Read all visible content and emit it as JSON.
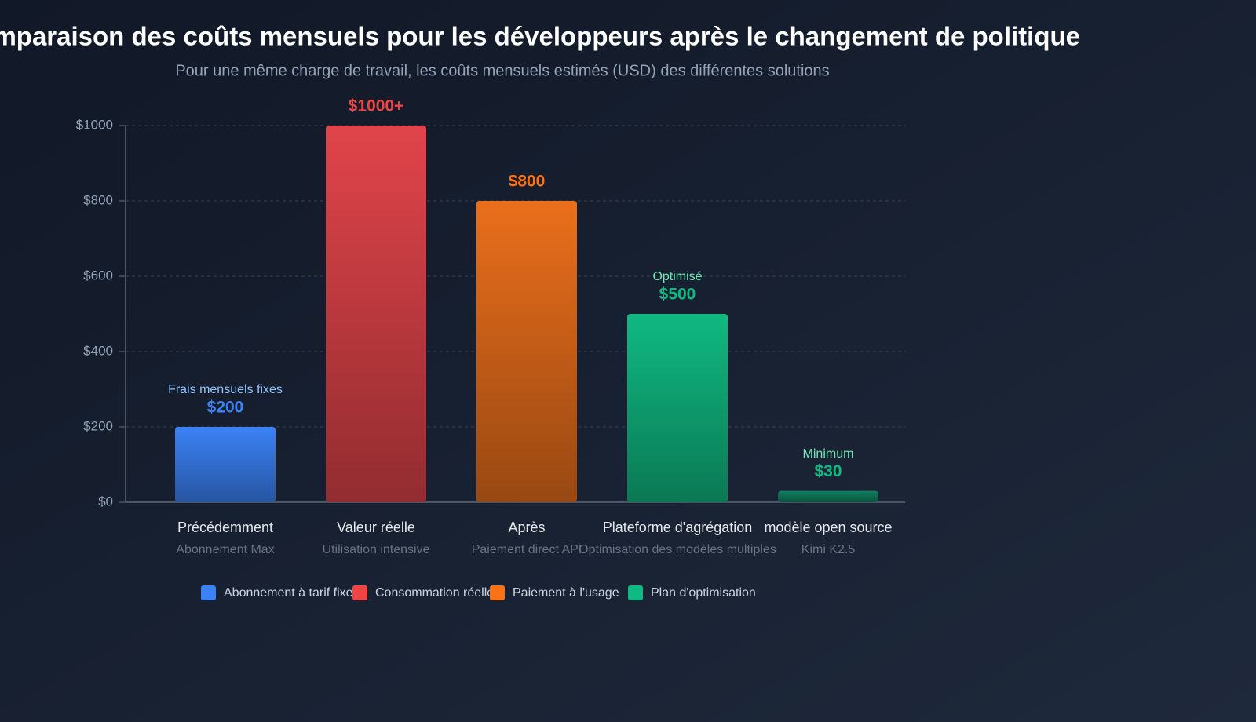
{
  "chart_data": {
    "type": "bar",
    "title": "Comparaison des coûts mensuels pour les développeurs après le changement de politique",
    "subtitle": "Pour une même charge de travail, les coûts mensuels estimés (USD) des différentes solutions",
    "categories": [
      "Précédemment",
      "Valeur réelle",
      "Après",
      "Plateforme d'agrégation",
      "modèle open source"
    ],
    "sublabels": [
      "Abonnement Max",
      "Utilisation intensive",
      "Paiement direct API",
      "Optimisation des modèles multiples",
      "Kimi K2.5"
    ],
    "values": [
      200,
      1000,
      800,
      500,
      30
    ],
    "value_labels": [
      "$200",
      "$1000+",
      "$800",
      "$500",
      "$30"
    ],
    "annotations": [
      "Frais mensuels fixes",
      null,
      null,
      "Optimisé",
      "Minimum"
    ],
    "colors": [
      "#3b82f6",
      "#e0444a",
      "#ea6f1c",
      "#10b981",
      "#0f8060"
    ],
    "label_colors": [
      "#3b82f6",
      "#ef4444",
      "#f97316",
      "#10b981",
      "#10b981"
    ],
    "annotation_colors": [
      "#93c5fd",
      null,
      null,
      "#6ee7b7",
      "#6ee7b7"
    ],
    "ylim": [
      0,
      1000
    ],
    "yticks": [
      {
        "value": 0,
        "label": "$0"
      },
      {
        "value": 200,
        "label": "$200"
      },
      {
        "value": 400,
        "label": "$400"
      },
      {
        "value": 600,
        "label": "$600"
      },
      {
        "value": 800,
        "label": "$800"
      },
      {
        "value": 1000,
        "label": "$1000"
      }
    ],
    "grid": true,
    "legend": [
      {
        "name": "Abonnement à tarif fixe",
        "color": "#3b82f6"
      },
      {
        "name": "Consommation réelle",
        "color": "#ef4444"
      },
      {
        "name": "Paiement à l'usage",
        "color": "#f97316"
      },
      {
        "name": "Plan d'optimisation",
        "color": "#10b981"
      }
    ]
  }
}
